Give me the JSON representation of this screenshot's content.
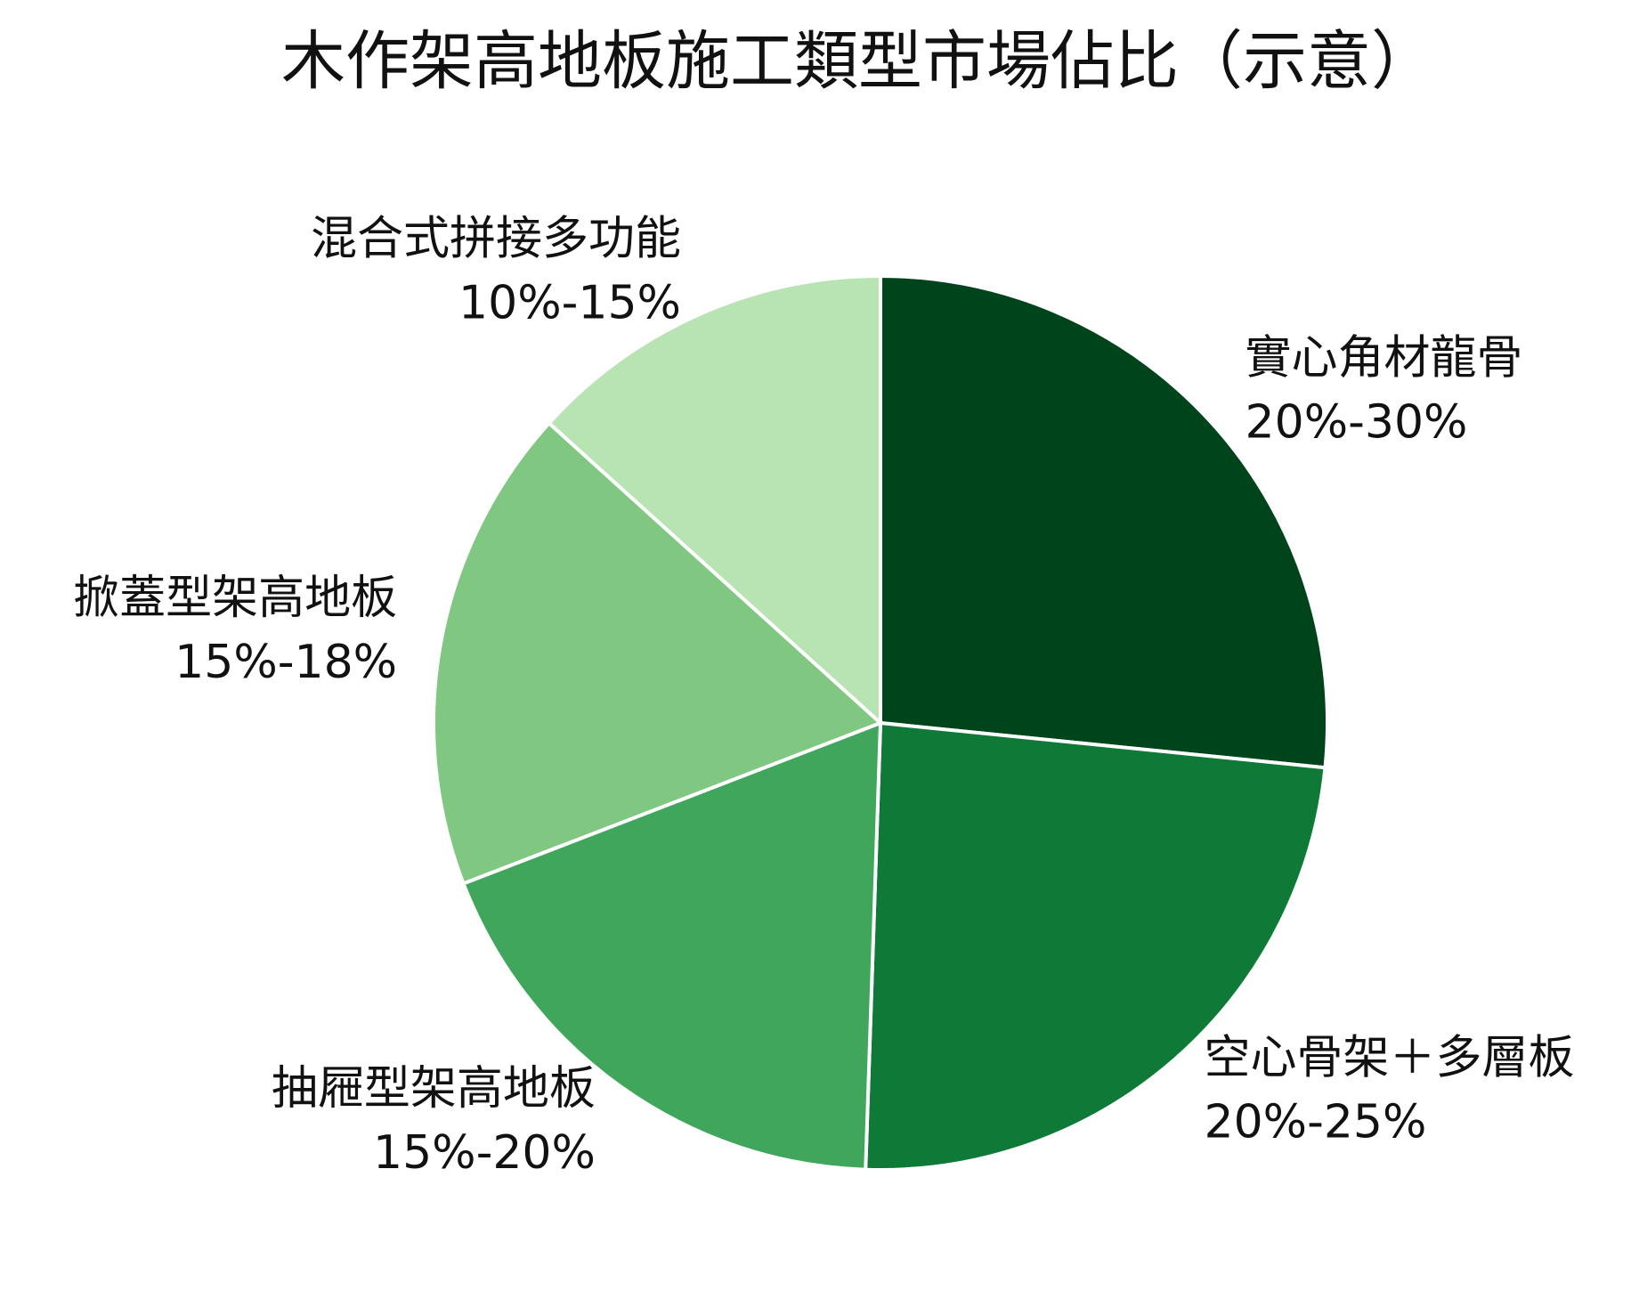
{
  "chart_data": {
    "type": "pie",
    "title": "木作架高地板施工類型市場佔比（示意）",
    "categories": [
      "實心角材龍骨",
      "空心骨架＋多層板",
      "抽屜型架高地板",
      "掀蓋型架高地板",
      "混合式拼接多功能"
    ],
    "values": [
      25,
      22.5,
      17.5,
      16.5,
      12.5
    ],
    "value_labels": [
      "20%-30%",
      "20%-25%",
      "15%-20%",
      "15%-18%",
      "10%-15%"
    ],
    "colors": [
      "#00441b",
      "#0f7a37",
      "#3fa65c",
      "#80c781",
      "#b8e3b3"
    ]
  }
}
